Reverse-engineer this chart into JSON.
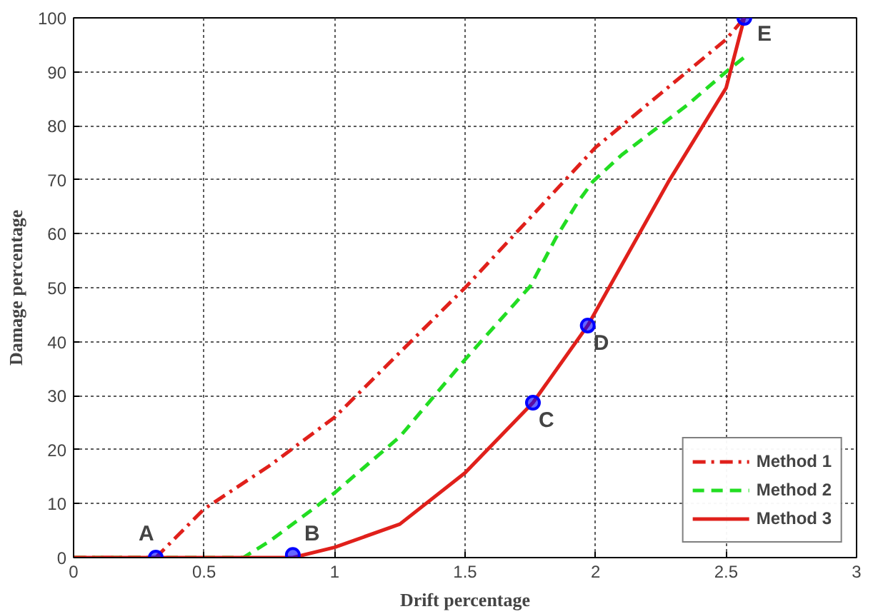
{
  "chart_data": {
    "type": "line",
    "xlabel": "Drift percentage",
    "ylabel": "Damage percentage",
    "xlim": [
      0,
      3
    ],
    "ylim": [
      0,
      100
    ],
    "xticks": [
      0,
      0.5,
      1,
      1.5,
      2,
      2.5,
      3
    ],
    "yticks": [
      0,
      10,
      20,
      30,
      40,
      50,
      60,
      70,
      80,
      90,
      100
    ],
    "grid": true,
    "legend": "bottom right",
    "marker": "none",
    "series": [
      {
        "name": "Method 1",
        "color": "#e0201b",
        "line_style": "dashdot",
        "x": [
          0,
          0.315,
          0.5,
          0.75,
          1,
          1.25,
          1.5,
          1.75,
          2,
          2.25,
          2.5,
          2.57
        ],
        "values": [
          0,
          0,
          9,
          17,
          26,
          38,
          50,
          63,
          76,
          86,
          96,
          100
        ]
      },
      {
        "name": "Method 2",
        "color": "#22dd22",
        "line_style": "dashed",
        "x": [
          0,
          0.65,
          0.75,
          1,
          1.25,
          1.5,
          1.75,
          1.85,
          1.93,
          1.99,
          2.1,
          2.2,
          2.35,
          2.5,
          2.57
        ],
        "values": [
          0,
          0,
          3,
          12,
          22.4,
          36.7,
          50.3,
          59.4,
          65.7,
          69.7,
          74.6,
          78.3,
          83.8,
          90,
          92.7
        ]
      },
      {
        "name": "Method 3",
        "color": "#e0201b",
        "line_style": "solid",
        "x": [
          0,
          0.84,
          1,
          1.25,
          1.5,
          1.76,
          1.97,
          2.28,
          2.5,
          2.57
        ],
        "values": [
          0,
          0,
          1.9,
          6.2,
          15.7,
          28.7,
          43,
          69.7,
          87,
          100
        ]
      },
      {
        "type": "scatter",
        "marker": "circle",
        "color": "#0000ff",
        "x": [
          0.315,
          0.84,
          1.76,
          1.97,
          2.57
        ],
        "values": [
          0,
          0.5,
          28.7,
          43,
          100
        ]
      }
    ],
    "annotations": [
      {
        "text": "A",
        "x": 0.315,
        "y": 0
      },
      {
        "text": "B",
        "x": 0.84,
        "y": 0.5
      },
      {
        "text": "C",
        "x": 1.76,
        "y": 28.7
      },
      {
        "text": "D",
        "x": 1.97,
        "y": 43
      },
      {
        "text": "E",
        "x": 2.57,
        "y": 100
      }
    ]
  }
}
